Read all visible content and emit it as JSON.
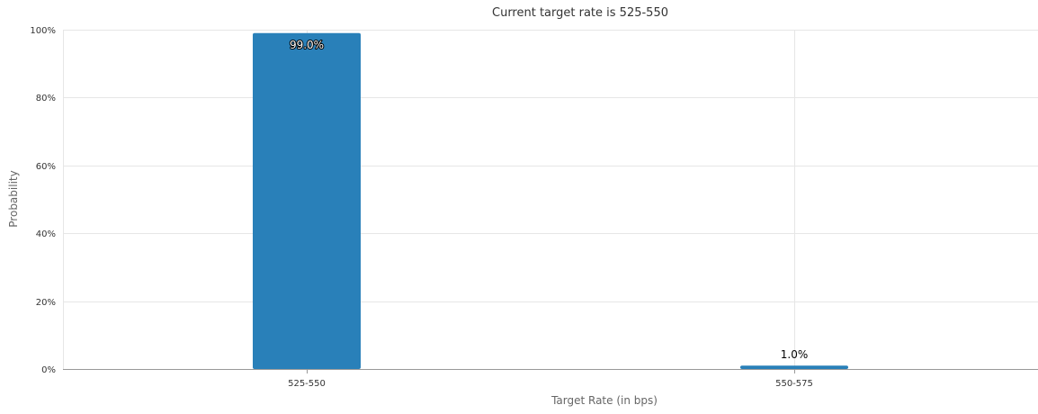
{
  "chart_data": {
    "type": "bar",
    "title": "Current target rate is 525-550",
    "xlabel": "Target Rate (in bps)",
    "ylabel": "Probability",
    "categories": [
      "525-550",
      "550-575"
    ],
    "values": [
      99.0,
      1.0
    ],
    "data_labels": [
      "99.0%",
      "1.0%"
    ],
    "y_ticks": [
      0,
      20,
      40,
      60,
      80,
      100
    ],
    "y_tick_labels": [
      "0%",
      "20%",
      "40%",
      "60%",
      "80%",
      "100%"
    ],
    "ylim": [
      0,
      100
    ],
    "grid": true,
    "legend": false,
    "colors": {
      "bar": "#2980b9",
      "grid": "#e6e6e6",
      "axis": "#999999"
    }
  }
}
